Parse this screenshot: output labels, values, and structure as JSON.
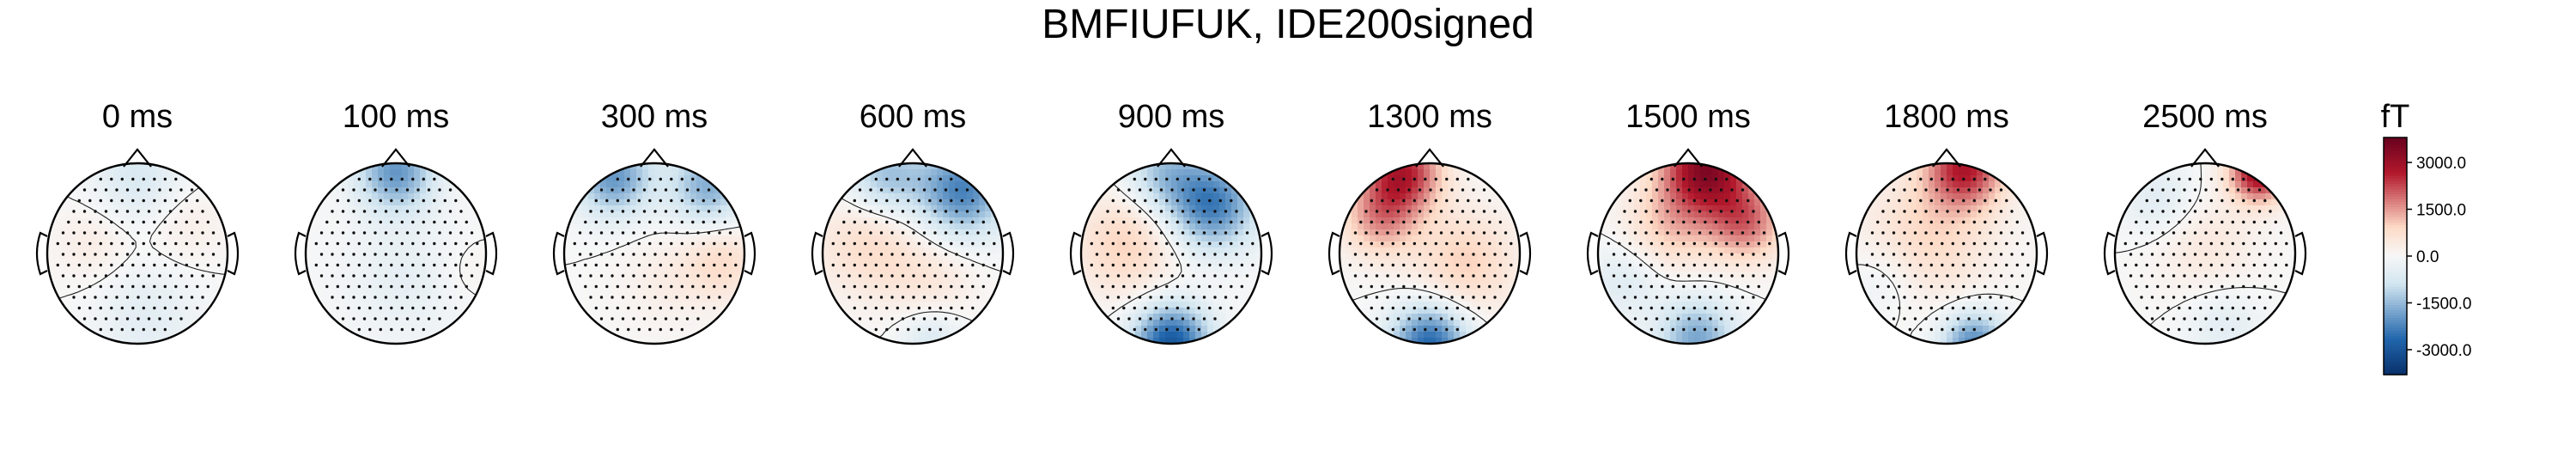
{
  "chart_data": {
    "type": "heatmap",
    "kind": "topomap-sequence",
    "title": "BMFIUFUK, IDE200signed",
    "colormap": "RdBu_r",
    "colors": {
      "min": "#08306b",
      "low": "#2166ac",
      "midlow": "#d1e5f0",
      "zero": "#f7f7f7",
      "midhigh": "#fddbc7",
      "high": "#b2182b",
      "max": "#67001f"
    },
    "colorbar": {
      "unit": "fT",
      "range": [
        -3800,
        3800
      ],
      "ticks": [
        3000,
        1500,
        0,
        -1500,
        -3000
      ],
      "tick_labels": [
        "3000.0",
        "1500.0",
        "0.0",
        "-1500.0",
        "-3000.0"
      ]
    },
    "maps": [
      {
        "label": "0 ms",
        "time_ms": 0,
        "blobs": [
          {
            "u": 0.0,
            "v": 0.85,
            "s": 0.35,
            "a": -700
          },
          {
            "u": -0.5,
            "v": 0.1,
            "s": 0.3,
            "a": 350
          },
          {
            "u": 0.55,
            "v": 0.3,
            "s": 0.3,
            "a": 300
          },
          {
            "u": 0.1,
            "v": -0.7,
            "s": 0.4,
            "a": -500
          }
        ]
      },
      {
        "label": "100 ms",
        "time_ms": 100,
        "blobs": [
          {
            "u": 0.0,
            "v": 0.9,
            "s": 0.3,
            "a": -2000
          },
          {
            "u": 0.1,
            "v": -0.3,
            "s": 0.5,
            "a": -400
          },
          {
            "u": 0.8,
            "v": -0.2,
            "s": 0.25,
            "a": 200
          }
        ]
      },
      {
        "label": "300 ms",
        "time_ms": 300,
        "blobs": [
          {
            "u": -0.45,
            "v": 0.85,
            "s": 0.3,
            "a": -2000
          },
          {
            "u": 0.6,
            "v": 0.75,
            "s": 0.3,
            "a": -1700
          },
          {
            "u": 0.75,
            "v": -0.1,
            "s": 0.3,
            "a": 800
          },
          {
            "u": 0.1,
            "v": -0.3,
            "s": 0.35,
            "a": 300
          }
        ]
      },
      {
        "label": "600 ms",
        "time_ms": 600,
        "blobs": [
          {
            "u": 0.55,
            "v": 0.7,
            "s": 0.35,
            "a": -2300
          },
          {
            "u": -0.3,
            "v": 0.85,
            "s": 0.3,
            "a": -1400
          },
          {
            "u": -0.5,
            "v": 0.1,
            "s": 0.4,
            "a": 800
          },
          {
            "u": 0.2,
            "v": -0.3,
            "s": 0.35,
            "a": 500
          },
          {
            "u": 0.2,
            "v": -0.95,
            "s": 0.25,
            "a": -700
          }
        ]
      },
      {
        "label": "900 ms",
        "time_ms": 900,
        "blobs": [
          {
            "u": 0.45,
            "v": 0.55,
            "s": 0.35,
            "a": -2400
          },
          {
            "u": -0.1,
            "v": 0.9,
            "s": 0.3,
            "a": -1200
          },
          {
            "u": -0.5,
            "v": 0.1,
            "s": 0.4,
            "a": 1000
          },
          {
            "u": 0.0,
            "v": -1.0,
            "s": 0.3,
            "a": -3000
          }
        ]
      },
      {
        "label": "1300 ms",
        "time_ms": 1300,
        "blobs": [
          {
            "u": -0.3,
            "v": 0.9,
            "s": 0.3,
            "a": 2600
          },
          {
            "u": -0.55,
            "v": 0.4,
            "s": 0.3,
            "a": 1500
          },
          {
            "u": 0.4,
            "v": -0.1,
            "s": 0.4,
            "a": 1000
          },
          {
            "u": 0.0,
            "v": -1.0,
            "s": 0.3,
            "a": -2700
          }
        ]
      },
      {
        "label": "1500 ms",
        "time_ms": 1500,
        "blobs": [
          {
            "u": 0.2,
            "v": 0.95,
            "s": 0.35,
            "a": 3300
          },
          {
            "u": 0.65,
            "v": 0.35,
            "s": 0.3,
            "a": 1800
          },
          {
            "u": -0.2,
            "v": 0.3,
            "s": 0.35,
            "a": 1000
          },
          {
            "u": -0.7,
            "v": -0.3,
            "s": 0.3,
            "a": -600
          },
          {
            "u": 0.1,
            "v": -0.95,
            "s": 0.3,
            "a": -1800
          }
        ]
      },
      {
        "label": "1800 ms",
        "time_ms": 1800,
        "blobs": [
          {
            "u": 0.2,
            "v": 0.95,
            "s": 0.3,
            "a": 2600
          },
          {
            "u": -0.2,
            "v": 0.2,
            "s": 0.5,
            "a": 900
          },
          {
            "u": 0.3,
            "v": -1.0,
            "s": 0.25,
            "a": -2200
          },
          {
            "u": -0.7,
            "v": -0.3,
            "s": 0.3,
            "a": -400
          }
        ]
      },
      {
        "label": "2500 ms",
        "time_ms": 2500,
        "blobs": [
          {
            "u": 0.6,
            "v": 0.9,
            "s": 0.22,
            "a": 3200
          },
          {
            "u": -0.5,
            "v": 0.6,
            "s": 0.3,
            "a": -600
          },
          {
            "u": 0.0,
            "v": 0.1,
            "s": 0.4,
            "a": 500
          },
          {
            "u": 0.2,
            "v": -0.8,
            "s": 0.3,
            "a": -500
          }
        ]
      }
    ]
  }
}
